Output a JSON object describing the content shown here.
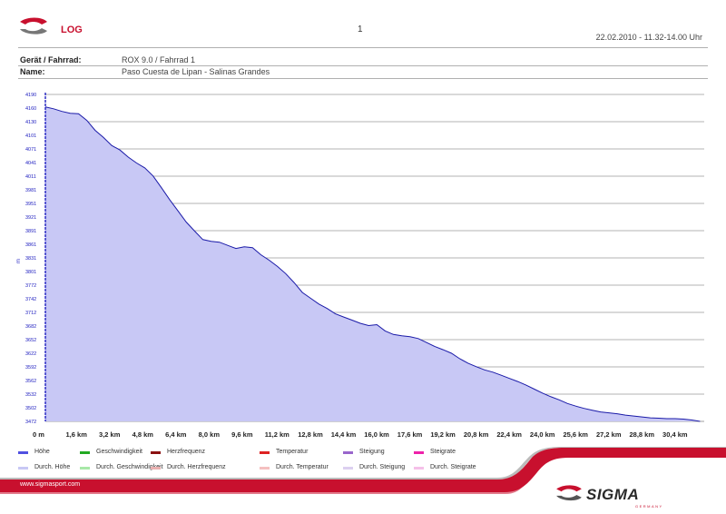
{
  "header": {
    "log_title": "LOG",
    "page_number": "1",
    "date_range": "22.02.2010 - 11.32-14.00 Uhr"
  },
  "meta": {
    "device_label": "Gerät / Fahrrad:",
    "device_value": "ROX 9.0 / Fahrrad 1",
    "name_label": "Name:",
    "name_value": "Paso Cuesta de Lipan - Salinas Grandes"
  },
  "colors": {
    "brand_red": "#c8102e",
    "area_fill": "#c8c8f5",
    "line": "#1a1aa8",
    "axis_text": "#2020c0"
  },
  "chart_data": {
    "type": "area",
    "title": "",
    "xlabel": "",
    "ylabel": "m",
    "xlim": [
      0,
      31.8
    ],
    "ylim": [
      3460,
      4190
    ],
    "x_tick_labels": [
      "0 m",
      "1,6 km",
      "3,2 km",
      "4,8 km",
      "6,4 km",
      "8,0 km",
      "9,6 km",
      "11,2 km",
      "12,8 km",
      "14,4 km",
      "16,0 km",
      "17,6 km",
      "19,2 km",
      "20,8 km",
      "22,4 km",
      "24,0 km",
      "25,6 km",
      "27,2 km",
      "28,8 km",
      "30,4 km"
    ],
    "y_tick_labels": [
      "4190",
      "4160",
      "4130",
      "4101",
      "4071",
      "4041",
      "4011",
      "3981",
      "3951",
      "3921",
      "3891",
      "3861",
      "3831",
      "3801",
      "3772",
      "3742",
      "3712",
      "3682",
      "3652",
      "3622",
      "3592",
      "3562",
      "3532",
      "3502",
      "3472"
    ],
    "series": [
      {
        "name": "",
        "x": [
          0,
          0.4,
          0.8,
          1.2,
          1.6,
          2.0,
          2.4,
          2.8,
          3.2,
          3.6,
          4.0,
          4.4,
          4.8,
          5.2,
          5.6,
          6.0,
          6.4,
          6.8,
          7.2,
          7.6,
          8.0,
          8.4,
          8.8,
          9.2,
          9.6,
          10.0,
          10.4,
          10.8,
          11.2,
          11.6,
          12.0,
          12.4,
          12.8,
          13.2,
          13.6,
          14.0,
          14.4,
          14.8,
          15.2,
          15.6,
          16.0,
          16.4,
          16.8,
          17.2,
          17.6,
          18.0,
          18.4,
          18.8,
          19.2,
          19.6,
          20.0,
          20.4,
          20.8,
          21.2,
          21.6,
          22.0,
          22.4,
          22.8,
          23.2,
          23.6,
          24.0,
          24.4,
          24.8,
          25.2,
          25.6,
          26.0,
          26.4,
          26.8,
          27.2,
          27.6,
          28.0,
          28.4,
          28.8,
          29.2,
          29.6,
          30.0,
          30.4,
          30.8,
          31.2,
          31.6
        ],
        "values": [
          4162,
          4158,
          4152,
          4148,
          4147,
          4132,
          4110,
          4094,
          4076,
          4066,
          4050,
          4037,
          4026,
          4008,
          3982,
          3955,
          3930,
          3905,
          3885,
          3866,
          3862,
          3860,
          3853,
          3846,
          3850,
          3848,
          3832,
          3820,
          3806,
          3790,
          3770,
          3748,
          3735,
          3722,
          3712,
          3700,
          3693,
          3686,
          3679,
          3674,
          3676,
          3662,
          3654,
          3651,
          3649,
          3645,
          3636,
          3627,
          3620,
          3612,
          3600,
          3590,
          3582,
          3575,
          3570,
          3563,
          3556,
          3549,
          3541,
          3532,
          3523,
          3515,
          3508,
          3500,
          3494,
          3489,
          3485,
          3481,
          3479,
          3477,
          3474,
          3472,
          3470,
          3468,
          3467,
          3466,
          3466,
          3465,
          3463,
          3460
        ]
      }
    ],
    "grid": true,
    "legend": "below"
  },
  "legend": {
    "row1": [
      {
        "label": "Höhe",
        "color": "#5050e0"
      },
      {
        "label": "Geschwindigkeit",
        "color": "#22aa22"
      },
      {
        "label": "Herzfrequenz",
        "color": "#8b1010"
      },
      {
        "label": "Temperatur",
        "color": "#dd2222"
      },
      {
        "label": "Steigung",
        "color": "#9966cc"
      },
      {
        "label": "Steigrate",
        "color": "#ee22aa"
      }
    ],
    "row2": [
      {
        "label": "Durch. Höhe",
        "color": "#c8c8f5"
      },
      {
        "label": "Durch. Geschwindigkeit",
        "color": "#a8e8a8"
      },
      {
        "label": "Durch. Herzfrequenz",
        "color": "#e8b0b0"
      },
      {
        "label": "Durch. Temperatur",
        "color": "#f5c0c0"
      },
      {
        "label": "Durch. Steigung",
        "color": "#dcd0f0"
      },
      {
        "label": "Durch. Steigrate",
        "color": "#f5c0e8"
      }
    ]
  },
  "footer": {
    "website": "www.sigmasport.com",
    "brand": "SIGMA",
    "brand_sub": "GERMANY"
  }
}
